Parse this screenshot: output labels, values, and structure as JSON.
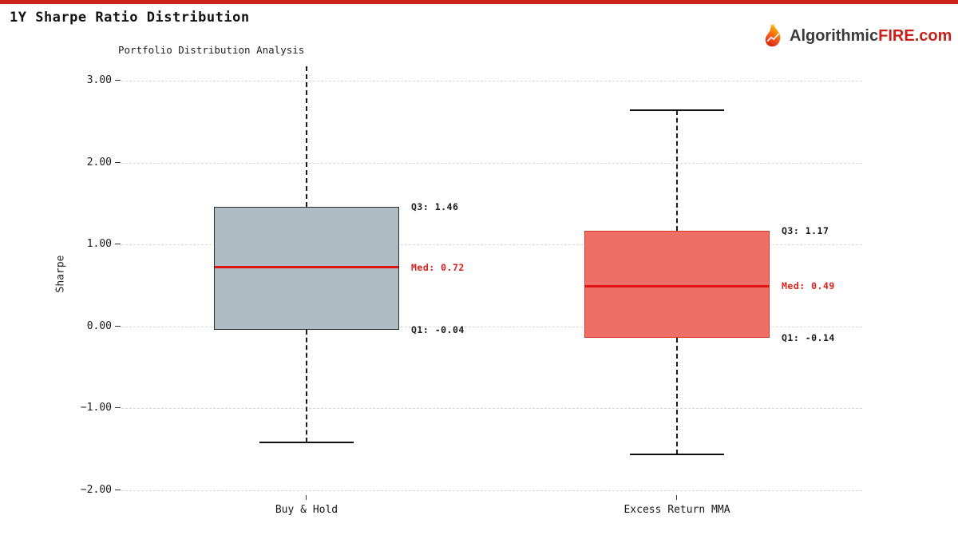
{
  "page": {
    "accent_color": "#c9241a",
    "background": "#ffffff"
  },
  "header": {
    "title": "1Y Sharpe Ratio Distribution",
    "logo": {
      "icon": "flame-icon",
      "prefix": "Algorithmic",
      "highlight": "FIRE",
      "suffix": ".com",
      "text_color": "#3a3a3a",
      "highlight_color": "#c8201a"
    }
  },
  "chart_data": {
    "type": "box",
    "title": "Portfolio Distribution Analysis",
    "xlabel": "",
    "ylabel": "Sharpe",
    "ylim": [
      -2.17,
      3.2
    ],
    "grid": "horizontal-dashed",
    "legend": "none",
    "categories": [
      "Buy & Hold",
      "Excess Return MMA"
    ],
    "yticks": [
      3.0,
      2.0,
      1.0,
      0.0,
      -1.0,
      -2.0
    ],
    "ytick_labels": [
      "3.00",
      "2.00",
      "1.00",
      "0.00",
      "−1.00",
      "−2.00"
    ],
    "median_color": "#e01212",
    "med_label_color": "#d9201a",
    "annotation_color": "#1a1a1a",
    "series": [
      {
        "name": "Buy & Hold",
        "q1": -0.04,
        "median": 0.72,
        "q3": 1.46,
        "whisker_low": -1.42,
        "whisker_high": 3.18,
        "cap_low": true,
        "cap_high": false,
        "box_fill": "#aebbc3",
        "box_border": "#2f2f2f",
        "labels": {
          "q3": "Q3: 1.46",
          "med": "Med: 0.72",
          "q1": "Q1: -0.04"
        }
      },
      {
        "name": "Excess Return MMA",
        "q1": -0.14,
        "median": 0.49,
        "q3": 1.17,
        "whisker_low": -1.57,
        "whisker_high": 2.64,
        "cap_low": true,
        "cap_high": true,
        "box_fill": "#ee6f66",
        "box_border": "#d23a2b",
        "labels": {
          "q3": "Q3: 1.17",
          "med": "Med: 0.49",
          "q1": "Q1: -0.14"
        }
      }
    ]
  }
}
